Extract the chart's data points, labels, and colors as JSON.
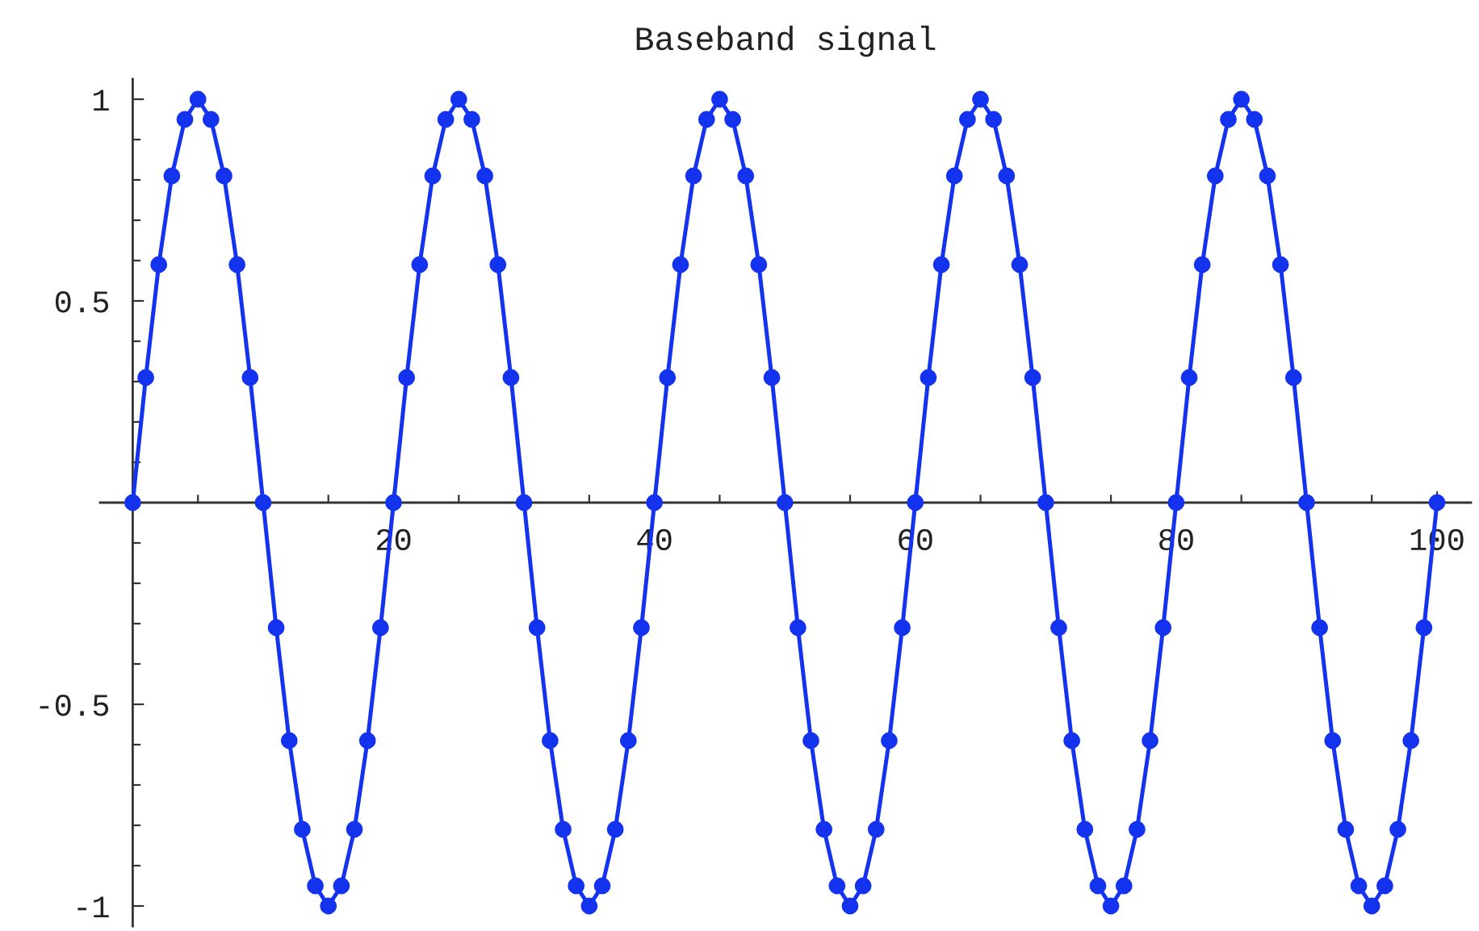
{
  "chart_data": {
    "type": "line",
    "title": "Baseband signal",
    "marker": "circle",
    "line_style": "solid",
    "xlim": [
      -2.5,
      102.6
    ],
    "ylim": [
      -1.05,
      1.05
    ],
    "xticks": [
      {
        "value": 5,
        "label": null
      },
      {
        "value": 10,
        "label": null
      },
      {
        "value": 15,
        "label": null
      },
      20,
      {
        "value": 25,
        "label": null
      },
      {
        "value": 30,
        "label": null
      },
      {
        "value": 35,
        "label": null
      },
      40,
      {
        "value": 45,
        "label": null
      },
      {
        "value": 50,
        "label": null
      },
      {
        "value": 55,
        "label": null
      },
      60,
      {
        "value": 65,
        "label": null
      },
      {
        "value": 70,
        "label": null
      },
      {
        "value": 75,
        "label": null
      },
      80,
      {
        "value": 85,
        "label": null
      },
      {
        "value": 90,
        "label": null
      },
      {
        "value": 95,
        "label": null
      },
      100
    ],
    "yticks": [
      -1,
      {
        "value": -0.9,
        "label": null
      },
      {
        "value": -0.8,
        "label": null
      },
      {
        "value": -0.7,
        "label": null
      },
      {
        "value": -0.6,
        "label": null
      },
      -0.5,
      {
        "value": -0.4,
        "label": null
      },
      {
        "value": -0.3,
        "label": null
      },
      {
        "value": -0.2,
        "label": null
      },
      {
        "value": -0.1,
        "label": null
      },
      {
        "value": 0.1,
        "label": null
      },
      {
        "value": 0.2,
        "label": null
      },
      {
        "value": 0.3,
        "label": null
      },
      {
        "value": 0.4,
        "label": null
      },
      0.5,
      {
        "value": 0.6,
        "label": null
      },
      {
        "value": 0.7,
        "label": null
      },
      {
        "value": 0.8,
        "label": null
      },
      {
        "value": 0.9,
        "label": null
      },
      1
    ],
    "x": [
      0,
      1,
      2,
      3,
      4,
      5,
      6,
      7,
      8,
      9,
      10,
      11,
      12,
      13,
      14,
      15,
      16,
      17,
      18,
      19,
      20,
      21,
      22,
      23,
      24,
      25,
      26,
      27,
      28,
      29,
      30,
      31,
      32,
      33,
      34,
      35,
      36,
      37,
      38,
      39,
      40,
      41,
      42,
      43,
      44,
      45,
      46,
      47,
      48,
      49,
      50,
      51,
      52,
      53,
      54,
      55,
      56,
      57,
      58,
      59,
      60,
      61,
      62,
      63,
      64,
      65,
      66,
      67,
      68,
      69,
      70,
      71,
      72,
      73,
      74,
      75,
      76,
      77,
      78,
      79,
      80,
      81,
      82,
      83,
      84,
      85,
      86,
      87,
      88,
      89,
      90,
      91,
      92,
      93,
      94,
      95,
      96,
      97,
      98,
      99,
      100
    ],
    "series": [
      {
        "color": "#1433ee",
        "values": [
          0,
          0.31,
          0.59,
          0.81,
          0.95,
          1,
          0.95,
          0.81,
          0.59,
          0.31,
          0,
          -0.31,
          -0.59,
          -0.81,
          -0.95,
          -1,
          -0.95,
          -0.81,
          -0.59,
          -0.31,
          0,
          0.31,
          0.59,
          0.81,
          0.95,
          1,
          0.95,
          0.81,
          0.59,
          0.31,
          0,
          -0.31,
          -0.59,
          -0.81,
          -0.95,
          -1,
          -0.95,
          -0.81,
          -0.59,
          -0.31,
          0,
          0.31,
          0.59,
          0.81,
          0.95,
          1,
          0.95,
          0.81,
          0.59,
          0.31,
          0,
          -0.31,
          -0.59,
          -0.81,
          -0.95,
          -1,
          -0.95,
          -0.81,
          -0.59,
          -0.31,
          0,
          0.31,
          0.59,
          0.81,
          0.95,
          1,
          0.95,
          0.81,
          0.59,
          0.31,
          0,
          -0.31,
          -0.59,
          -0.81,
          -0.95,
          -1,
          -0.95,
          -0.81,
          -0.59,
          -0.31,
          0,
          0.31,
          0.59,
          0.81,
          0.95,
          1,
          0.95,
          0.81,
          0.59,
          0.31,
          0,
          -0.31,
          -0.59,
          -0.81,
          -0.95,
          -1,
          -0.95,
          -0.81,
          -0.59,
          -0.31,
          0
        ]
      }
    ]
  }
}
